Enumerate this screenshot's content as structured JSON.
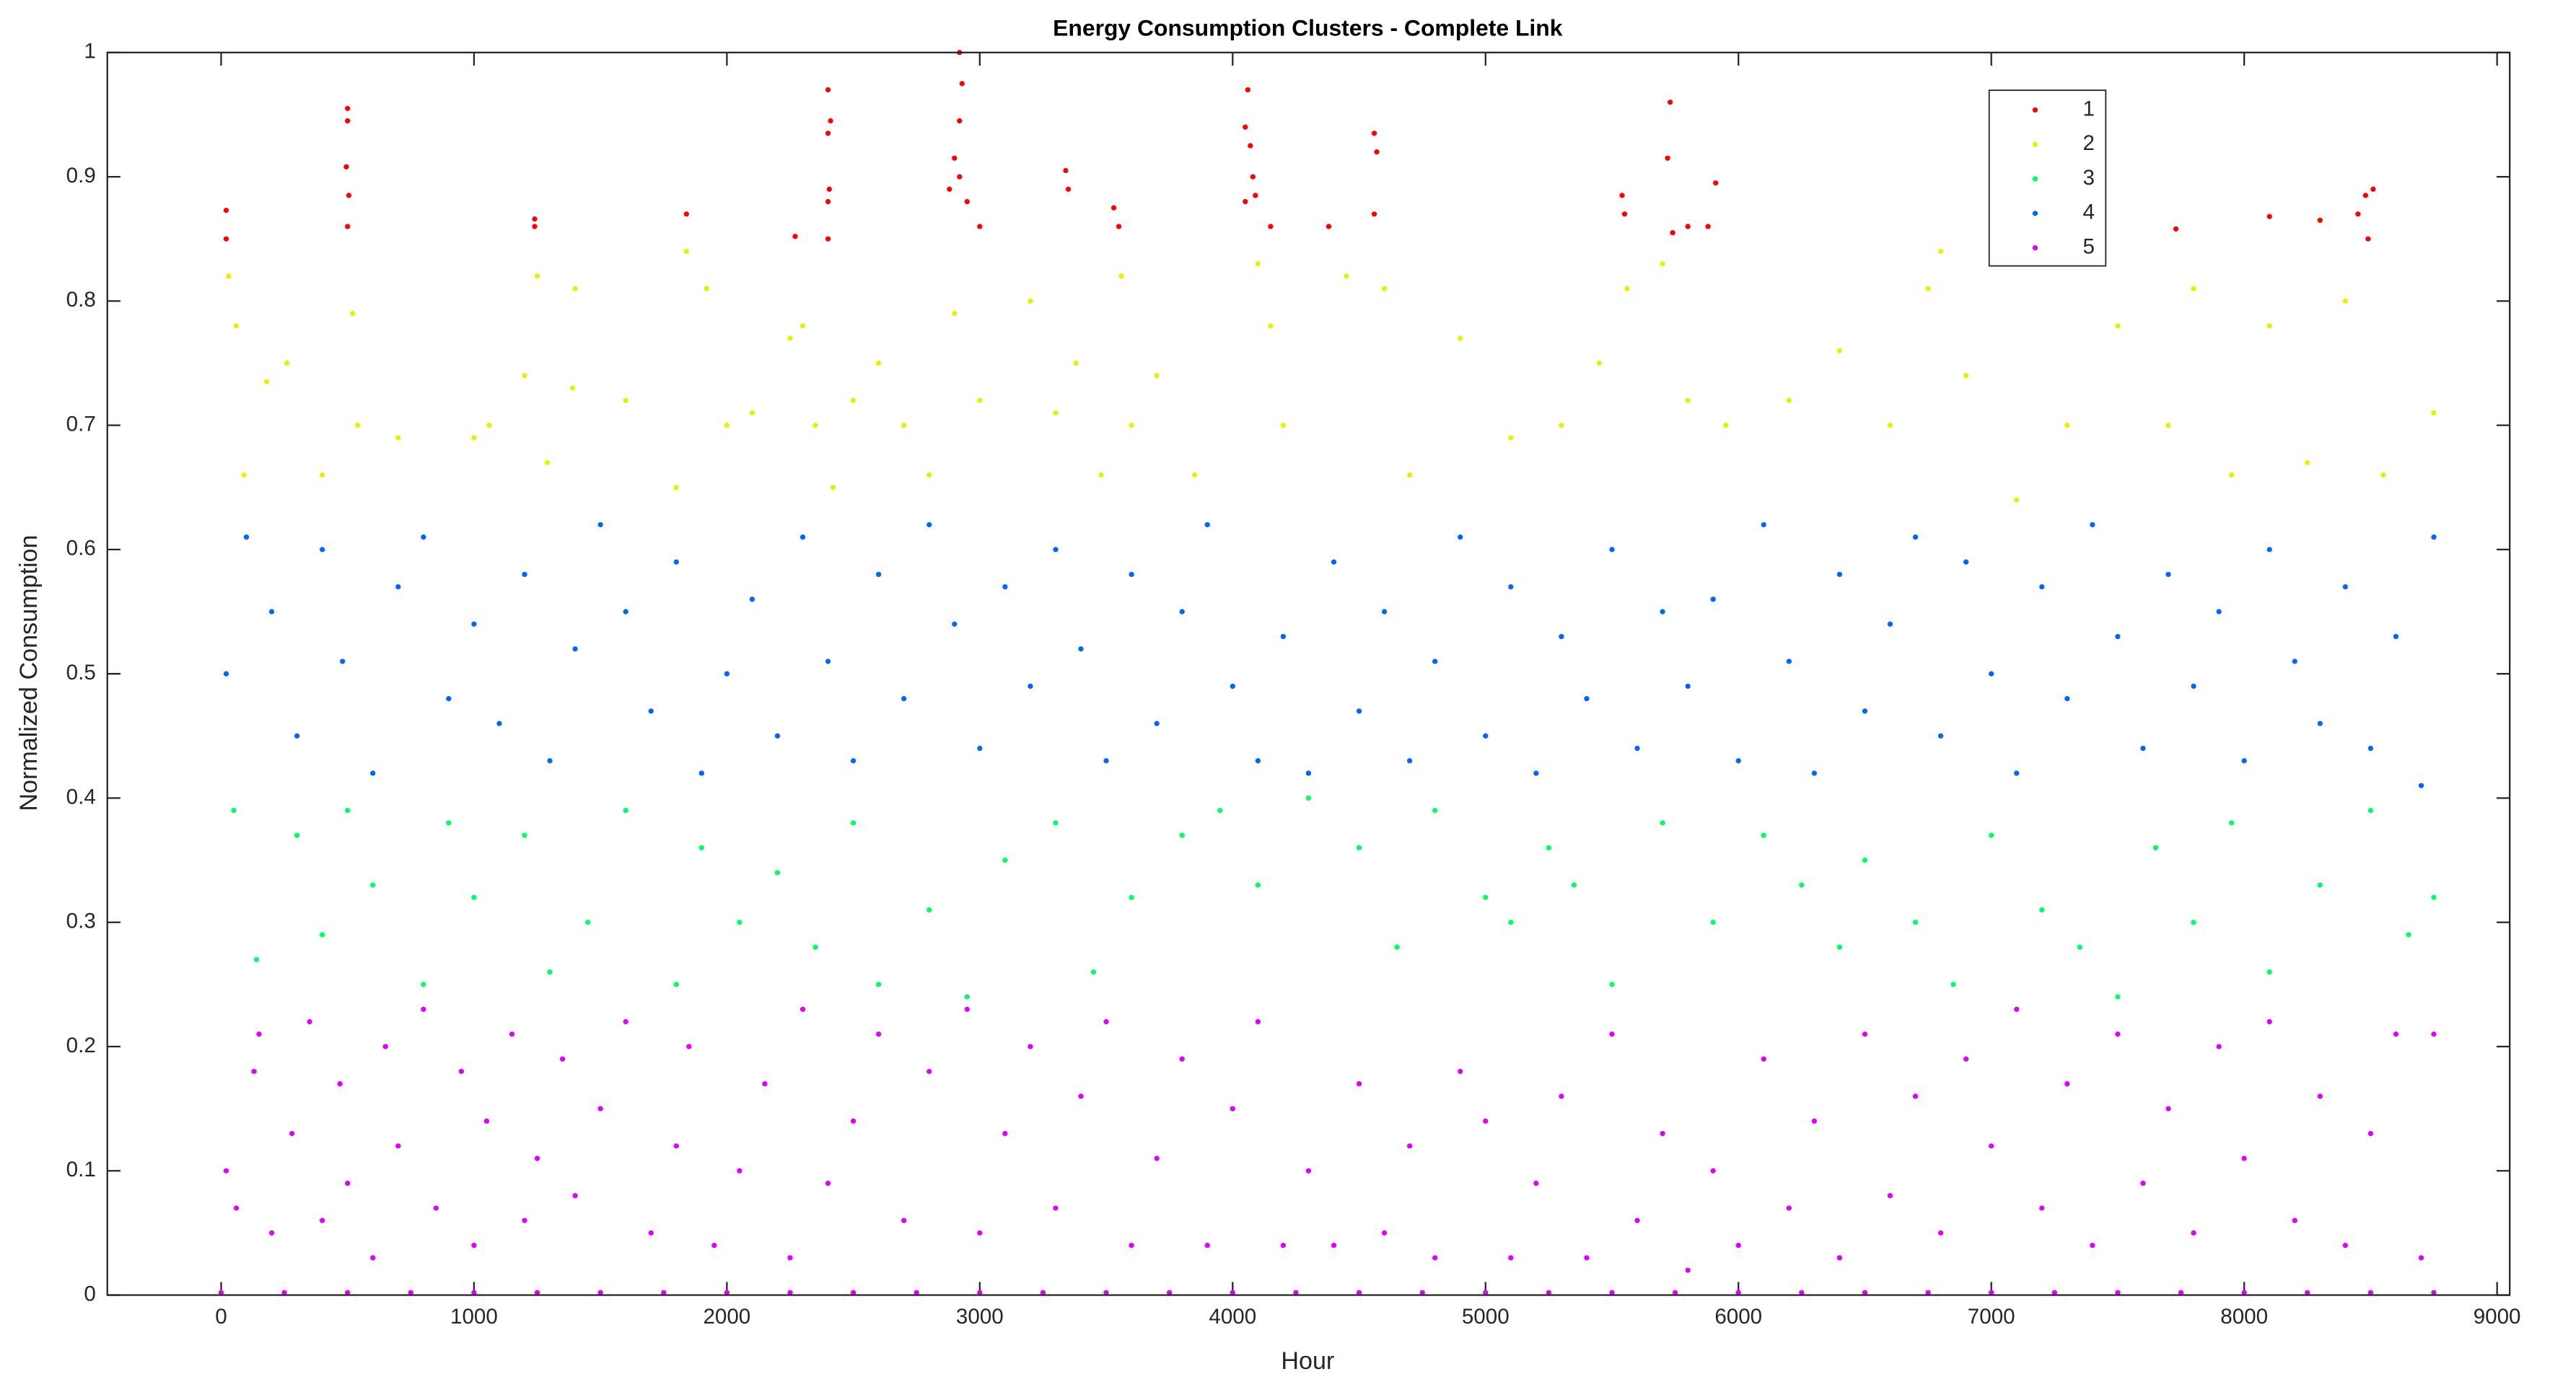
{
  "chart_data": {
    "type": "scatter",
    "title": "Energy Consumption Clusters - Complete Link",
    "x_label": "Hour",
    "y_label": "Normalized Consumption",
    "xlim": [
      -450,
      9050
    ],
    "ylim": [
      0,
      1
    ],
    "xticks": [
      0,
      1000,
      2000,
      3000,
      4000,
      5000,
      6000,
      7000,
      8000,
      9000
    ],
    "yticks": [
      0,
      0.1,
      0.2,
      0.3,
      0.4,
      0.5,
      0.6,
      0.7,
      0.8,
      0.9,
      1
    ],
    "legend": "top-right",
    "grid": false,
    "series": [
      {
        "name": "1",
        "color": "#ff0000",
        "x": [
          20,
          20,
          500,
          500,
          495,
          505,
          500,
          1240,
          1240,
          1840,
          2270,
          2400,
          2410,
          2400,
          2405,
          2400,
          2400,
          2920,
          2930,
          2920,
          2900,
          2880,
          2920,
          2950,
          3000,
          3340,
          3350,
          3530,
          3550,
          4060,
          4050,
          4070,
          4080,
          4090,
          4050,
          4150,
          4380,
          4560,
          4570,
          4560,
          5540,
          5550,
          5730,
          5720,
          5740,
          5800,
          5910,
          5880,
          7730,
          8100,
          8300,
          8480,
          8510,
          8450,
          8490
        ],
        "values": [
          0.873,
          0.85,
          0.955,
          0.945,
          0.908,
          0.885,
          0.86,
          0.866,
          0.86,
          0.87,
          0.852,
          0.97,
          0.945,
          0.935,
          0.89,
          0.88,
          0.85,
          1.0,
          0.975,
          0.945,
          0.915,
          0.89,
          0.9,
          0.88,
          0.86,
          0.905,
          0.89,
          0.875,
          0.86,
          0.97,
          0.94,
          0.925,
          0.9,
          0.885,
          0.88,
          0.86,
          0.86,
          0.935,
          0.92,
          0.87,
          0.885,
          0.87,
          0.96,
          0.915,
          0.855,
          0.86,
          0.895,
          0.86,
          0.858,
          0.868,
          0.865,
          0.885,
          0.89,
          0.87,
          0.85
        ]
      },
      {
        "name": "2",
        "color": "#e6f000",
        "x": [
          30,
          60,
          90,
          180,
          260,
          400,
          520,
          540,
          700,
          1000,
          1060,
          1200,
          1250,
          1290,
          1390,
          1400,
          1600,
          1800,
          1840,
          1920,
          2000,
          2100,
          2250,
          2300,
          2350,
          2420,
          2500,
          2600,
          2700,
          2800,
          2900,
          3000,
          3200,
          3300,
          3380,
          3480,
          3560,
          3600,
          3700,
          3850,
          4100,
          4150,
          4200,
          4450,
          4600,
          4700,
          4900,
          5100,
          5300,
          5450,
          5560,
          5700,
          5800,
          5950,
          6200,
          6400,
          6600,
          6750,
          6800,
          6900,
          7100,
          7300,
          7500,
          7700,
          7800,
          7950,
          8100,
          8250,
          8400,
          8550,
          8750
        ],
        "values": [
          0.82,
          0.78,
          0.66,
          0.735,
          0.75,
          0.66,
          0.79,
          0.7,
          0.69,
          0.69,
          0.7,
          0.74,
          0.82,
          0.67,
          0.73,
          0.81,
          0.72,
          0.65,
          0.84,
          0.81,
          0.7,
          0.71,
          0.77,
          0.78,
          0.7,
          0.65,
          0.72,
          0.75,
          0.7,
          0.66,
          0.79,
          0.72,
          0.8,
          0.71,
          0.75,
          0.66,
          0.82,
          0.7,
          0.74,
          0.66,
          0.83,
          0.78,
          0.7,
          0.82,
          0.81,
          0.66,
          0.77,
          0.69,
          0.7,
          0.75,
          0.81,
          0.83,
          0.72,
          0.7,
          0.72,
          0.76,
          0.7,
          0.81,
          0.84,
          0.74,
          0.64,
          0.7,
          0.78,
          0.7,
          0.81,
          0.66,
          0.78,
          0.67,
          0.8,
          0.66,
          0.71
        ]
      },
      {
        "name": "3",
        "color": "#00ff66",
        "x": [
          50,
          140,
          300,
          400,
          500,
          600,
          800,
          900,
          1000,
          1200,
          1300,
          1450,
          1600,
          1800,
          1900,
          2050,
          2200,
          2350,
          2500,
          2600,
          2800,
          2950,
          3100,
          3300,
          3450,
          3600,
          3800,
          3950,
          4100,
          4300,
          4500,
          4650,
          4800,
          5000,
          5100,
          5250,
          5350,
          5500,
          5700,
          5900,
          6100,
          6250,
          6400,
          6500,
          6700,
          6850,
          7000,
          7200,
          7350,
          7500,
          7650,
          7800,
          7950,
          8100,
          8300,
          8500,
          8650,
          8750
        ],
        "values": [
          0.39,
          0.27,
          0.37,
          0.29,
          0.39,
          0.33,
          0.25,
          0.38,
          0.32,
          0.37,
          0.26,
          0.3,
          0.39,
          0.25,
          0.36,
          0.3,
          0.34,
          0.28,
          0.38,
          0.25,
          0.31,
          0.24,
          0.35,
          0.38,
          0.26,
          0.32,
          0.37,
          0.39,
          0.33,
          0.4,
          0.36,
          0.28,
          0.39,
          0.32,
          0.3,
          0.36,
          0.33,
          0.25,
          0.38,
          0.3,
          0.37,
          0.33,
          0.28,
          0.35,
          0.3,
          0.25,
          0.37,
          0.31,
          0.28,
          0.24,
          0.36,
          0.3,
          0.38,
          0.26,
          0.33,
          0.39,
          0.29,
          0.32
        ]
      },
      {
        "name": "4",
        "color": "#0066ff",
        "x": [
          20,
          100,
          200,
          300,
          400,
          480,
          600,
          700,
          800,
          900,
          1000,
          1100,
          1200,
          1300,
          1400,
          1500,
          1600,
          1700,
          1800,
          1900,
          2000,
          2100,
          2200,
          2300,
          2400,
          2500,
          2600,
          2700,
          2800,
          2900,
          3000,
          3100,
          3200,
          3300,
          3400,
          3500,
          3600,
          3700,
          3800,
          3900,
          4000,
          4100,
          4200,
          4300,
          4400,
          4500,
          4600,
          4700,
          4800,
          4900,
          5000,
          5100,
          5200,
          5300,
          5400,
          5500,
          5600,
          5700,
          5800,
          5900,
          6000,
          6100,
          6200,
          6300,
          6400,
          6500,
          6600,
          6700,
          6800,
          6900,
          7000,
          7100,
          7200,
          7300,
          7400,
          7500,
          7600,
          7700,
          7800,
          7900,
          8000,
          8100,
          8200,
          8300,
          8400,
          8500,
          8600,
          8700,
          8750
        ],
        "values": [
          0.5,
          0.61,
          0.55,
          0.45,
          0.6,
          0.51,
          0.42,
          0.57,
          0.61,
          0.48,
          0.54,
          0.46,
          0.58,
          0.43,
          0.52,
          0.62,
          0.55,
          0.47,
          0.59,
          0.42,
          0.5,
          0.56,
          0.45,
          0.61,
          0.51,
          0.43,
          0.58,
          0.48,
          0.62,
          0.54,
          0.44,
          0.57,
          0.49,
          0.6,
          0.52,
          0.43,
          0.58,
          0.46,
          0.55,
          0.62,
          0.49,
          0.43,
          0.53,
          0.42,
          0.59,
          0.47,
          0.55,
          0.43,
          0.51,
          0.61,
          0.45,
          0.57,
          0.42,
          0.53,
          0.48,
          0.6,
          0.44,
          0.55,
          0.49,
          0.56,
          0.43,
          0.62,
          0.51,
          0.42,
          0.58,
          0.47,
          0.54,
          0.61,
          0.45,
          0.59,
          0.5,
          0.42,
          0.57,
          0.48,
          0.62,
          0.53,
          0.44,
          0.58,
          0.49,
          0.55,
          0.43,
          0.6,
          0.51,
          0.46,
          0.57,
          0.44,
          0.53,
          0.41,
          0.61
        ]
      },
      {
        "name": "5",
        "color": "#dd00ff",
        "x": [
          20,
          60,
          130,
          150,
          200,
          280,
          350,
          400,
          470,
          500,
          600,
          650,
          700,
          800,
          850,
          950,
          1000,
          1050,
          1150,
          1200,
          1250,
          1350,
          1400,
          1500,
          1600,
          1700,
          1800,
          1850,
          1950,
          2050,
          2150,
          2250,
          2300,
          2400,
          2500,
          2600,
          2700,
          2800,
          2950,
          3000,
          3100,
          3200,
          3300,
          3400,
          3500,
          3600,
          3700,
          3800,
          3900,
          4000,
          4100,
          4200,
          4300,
          4400,
          4500,
          4600,
          4700,
          4800,
          4900,
          5000,
          5100,
          5200,
          5300,
          5400,
          5500,
          5600,
          5700,
          5800,
          5900,
          6000,
          6100,
          6200,
          6300,
          6400,
          6500,
          6600,
          6700,
          6800,
          6900,
          7000,
          7100,
          7200,
          7300,
          7400,
          7500,
          7600,
          7700,
          7800,
          7900,
          8000,
          8100,
          8200,
          8300,
          8400,
          8500,
          8600,
          8700,
          8750,
          0,
          250,
          500,
          750,
          1000,
          1250,
          1500,
          1750,
          2000,
          2250,
          2500,
          2750,
          3000,
          3250,
          3500,
          3750,
          4000,
          4250,
          4500,
          4750,
          5000,
          5250,
          5500,
          5750,
          6000,
          6250,
          6500,
          6750,
          7000,
          7250,
          7500,
          7750,
          8000,
          8250,
          8500,
          8750
        ],
        "values": [
          0.1,
          0.07,
          0.18,
          0.21,
          0.05,
          0.13,
          0.22,
          0.06,
          0.17,
          0.09,
          0.03,
          0.2,
          0.12,
          0.23,
          0.07,
          0.18,
          0.04,
          0.14,
          0.21,
          0.06,
          0.11,
          0.19,
          0.08,
          0.15,
          0.22,
          0.05,
          0.12,
          0.2,
          0.04,
          0.1,
          0.17,
          0.03,
          0.23,
          0.09,
          0.14,
          0.21,
          0.06,
          0.18,
          0.23,
          0.05,
          0.13,
          0.2,
          0.07,
          0.16,
          0.22,
          0.04,
          0.11,
          0.19,
          0.04,
          0.15,
          0.22,
          0.04,
          0.1,
          0.04,
          0.17,
          0.05,
          0.12,
          0.03,
          0.18,
          0.14,
          0.03,
          0.09,
          0.16,
          0.03,
          0.21,
          0.06,
          0.13,
          0.02,
          0.1,
          0.04,
          0.19,
          0.07,
          0.14,
          0.03,
          0.21,
          0.08,
          0.16,
          0.05,
          0.19,
          0.12,
          0.23,
          0.07,
          0.17,
          0.04,
          0.21,
          0.09,
          0.15,
          0.05,
          0.2,
          0.11,
          0.22,
          0.06,
          0.16,
          0.04,
          0.13,
          0.21,
          0.03,
          0.21,
          0.002,
          0.002,
          0.002,
          0.002,
          0.002,
          0.002,
          0.002,
          0.002,
          0.002,
          0.002,
          0.002,
          0.002,
          0.002,
          0.002,
          0.002,
          0.002,
          0.002,
          0.002,
          0.002,
          0.002,
          0.002,
          0.002,
          0.002,
          0.002,
          0.002,
          0.002,
          0.002,
          0.002,
          0.002,
          0.002,
          0.002,
          0.002,
          0.002,
          0.002,
          0.002,
          0.002
        ]
      }
    ]
  }
}
